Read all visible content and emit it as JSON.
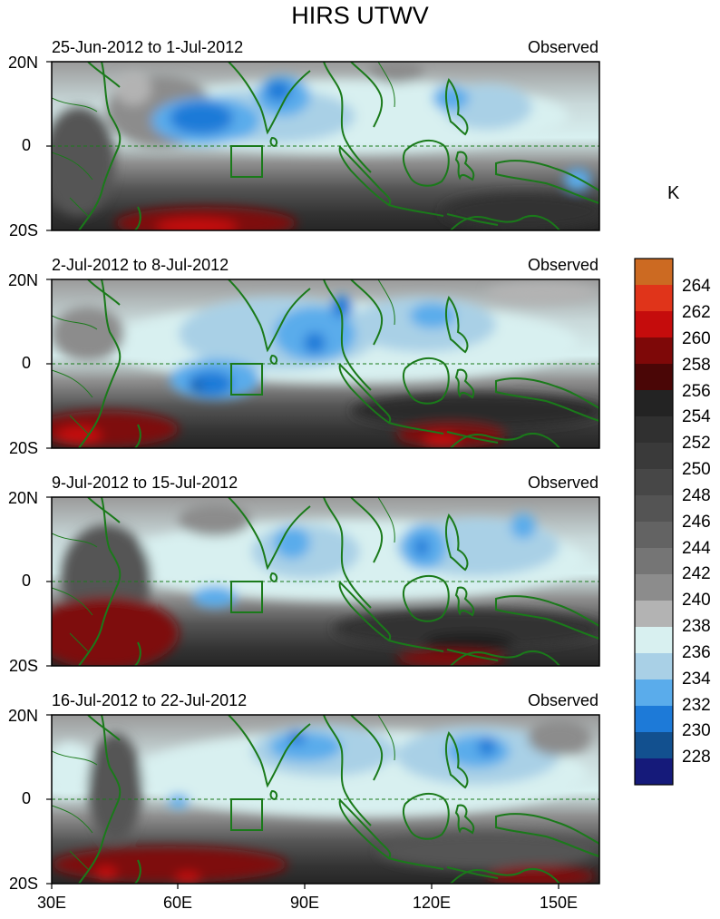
{
  "title": "HIRS UTWV",
  "unit": "K",
  "panels": [
    {
      "period": "25-Jun-2012 to 1-Jul-2012",
      "label": "Observed"
    },
    {
      "period": "2-Jul-2012 to 8-Jul-2012",
      "label": "Observed"
    },
    {
      "period": "9-Jul-2012 to 15-Jul-2012",
      "label": "Observed"
    },
    {
      "period": "16-Jul-2012 to 22-Jul-2012",
      "label": "Observed"
    }
  ],
  "lat_labels": [
    "20N",
    "0",
    "20S"
  ],
  "lon_labels": [
    "30E",
    "60E",
    "90E",
    "120E",
    "150E"
  ],
  "colorbar": {
    "labels": [
      "264",
      "262",
      "260",
      "258",
      "256",
      "254",
      "252",
      "250",
      "248",
      "246",
      "244",
      "242",
      "240",
      "238",
      "236",
      "234",
      "232",
      "230",
      "228"
    ],
    "colors": [
      "#cc6a22",
      "#e0341a",
      "#c50c0c",
      "#7e0808",
      "#4a0606",
      "#232323",
      "#303030",
      "#3a3a3a",
      "#474747",
      "#545454",
      "#636363",
      "#757575",
      "#8c8c8c",
      "#b3b3b3",
      "#d8f0f0",
      "#a9d0e6",
      "#5aaceb",
      "#1d7ad8",
      "#12508f",
      "#151a7a"
    ]
  }
}
